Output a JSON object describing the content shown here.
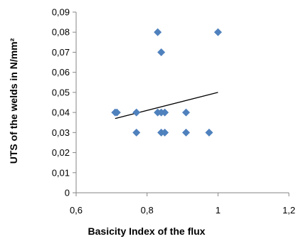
{
  "chart_data": {
    "type": "scatter",
    "xlabel": "Basicity Index of the flux",
    "ylabel": "UTS of the welds in N/mm²",
    "xlim": [
      0.6,
      1.2
    ],
    "ylim": [
      0,
      0.09
    ],
    "x_ticks": [
      "0,6",
      "0,8",
      "1",
      "1,2"
    ],
    "x_tick_values": [
      0.6,
      0.8,
      1.0,
      1.2
    ],
    "y_ticks": [
      "0",
      "0,01",
      "0,02",
      "0,03",
      "0,04",
      "0,05",
      "0,06",
      "0,07",
      "0,08",
      "0,09"
    ],
    "y_tick_values": [
      0,
      0.01,
      0.02,
      0.03,
      0.04,
      0.05,
      0.06,
      0.07,
      0.08,
      0.09
    ],
    "grid": false,
    "legend": "none",
    "series": [
      {
        "marker": "diamond",
        "color": "#4F81BD",
        "points": [
          {
            "x": 0.71,
            "y": 0.04
          },
          {
            "x": 0.715,
            "y": 0.04
          },
          {
            "x": 0.77,
            "y": 0.04
          },
          {
            "x": 0.77,
            "y": 0.03
          },
          {
            "x": 0.83,
            "y": 0.08
          },
          {
            "x": 0.84,
            "y": 0.07
          },
          {
            "x": 0.83,
            "y": 0.04
          },
          {
            "x": 0.84,
            "y": 0.04
          },
          {
            "x": 0.85,
            "y": 0.04
          },
          {
            "x": 0.84,
            "y": 0.03
          },
          {
            "x": 0.85,
            "y": 0.03
          },
          {
            "x": 0.91,
            "y": 0.04
          },
          {
            "x": 0.91,
            "y": 0.03
          },
          {
            "x": 0.975,
            "y": 0.03
          },
          {
            "x": 1.0,
            "y": 0.08
          }
        ]
      }
    ],
    "trendline": {
      "type": "linear",
      "color": "#000000",
      "x_start": 0.71,
      "x_end": 1.0,
      "y_start": 0.037,
      "y_end": 0.05
    }
  }
}
